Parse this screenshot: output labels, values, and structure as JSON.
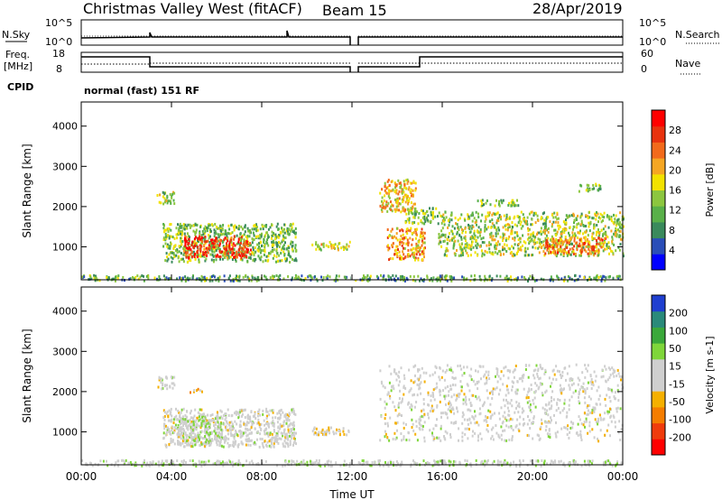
{
  "header": {
    "title": "Christmas Valley West (fitACF)",
    "beam": "Beam 15",
    "date": "28/Apr/2019"
  },
  "param_labels": {
    "nsky": "N.Sky",
    "nsearch": "N.Search",
    "freq_line1": "Freq.",
    "freq_line2": "[MHz]",
    "nave": "Nave",
    "cpid": "CPID",
    "cpid_value": "normal (fast) 151 RF",
    "noise_ticks": [
      "10^5",
      "10^0"
    ],
    "freq_ticks": [
      "18",
      "8"
    ],
    "nave_ticks": [
      "60",
      "0"
    ]
  },
  "chart_data": [
    {
      "type": "heatmap",
      "title": "",
      "xlabel": "Time UT",
      "ylabel": "Slant Range [km]",
      "xlim": [
        0,
        24
      ],
      "ylim": [
        180,
        4600
      ],
      "x_ticks": [
        "00:00",
        "04:00",
        "08:00",
        "12:00",
        "16:00",
        "20:00",
        "00:00"
      ],
      "y_ticks": [
        "1000",
        "2000",
        "3000",
        "4000"
      ],
      "colorbar": {
        "label": "Power [dB]",
        "ticks": [
          "4",
          "8",
          "12",
          "16",
          "20",
          "24",
          "28"
        ],
        "range": [
          0,
          30
        ],
        "colors": [
          "#0000ff",
          "#2a4eb8",
          "#3a8a5c",
          "#59b049",
          "#8cc63f",
          "#f2e200",
          "#f5a623",
          "#f26a1b",
          "#e8330f",
          "#ff0000"
        ]
      },
      "echo_regions": [
        {
          "t": [
            3.3,
            4.1
          ],
          "range": [
            2100,
            2400
          ],
          "value": 14
        },
        {
          "t": [
            3.6,
            9.5
          ],
          "range": [
            650,
            1600
          ],
          "value": 12
        },
        {
          "t": [
            4.5,
            7.5
          ],
          "range": [
            750,
            1300
          ],
          "value": 26
        },
        {
          "t": [
            10.2,
            11.9
          ],
          "range": [
            950,
            1150
          ],
          "value": 16
        },
        {
          "t": [
            13.2,
            14.8
          ],
          "range": [
            1900,
            2700
          ],
          "value": 18
        },
        {
          "t": [
            14.3,
            15.8
          ],
          "range": [
            1600,
            2000
          ],
          "value": 12
        },
        {
          "t": [
            13.5,
            15.2
          ],
          "range": [
            700,
            1500
          ],
          "value": 20
        },
        {
          "t": [
            15.8,
            24
          ],
          "range": [
            800,
            1900
          ],
          "value": 14
        },
        {
          "t": [
            20.5,
            23.2
          ],
          "range": [
            850,
            1250
          ],
          "value": 22
        },
        {
          "t": [
            17.5,
            19.5
          ],
          "range": [
            2050,
            2200
          ],
          "value": 12
        },
        {
          "t": [
            22,
            23
          ],
          "range": [
            2400,
            2600
          ],
          "value": 12
        },
        {
          "t": [
            0,
            24
          ],
          "range": [
            180,
            320
          ],
          "value": 10
        }
      ]
    },
    {
      "type": "heatmap",
      "title": "",
      "xlabel": "Time UT",
      "ylabel": "Slant Range [km]",
      "xlim": [
        0,
        24
      ],
      "ylim": [
        180,
        4600
      ],
      "x_ticks": [
        "00:00",
        "04:00",
        "08:00",
        "12:00",
        "16:00",
        "20:00",
        "00:00"
      ],
      "y_ticks": [
        "1000",
        "2000",
        "3000",
        "4000"
      ],
      "colorbar": {
        "label": "Velocity [m s-1]",
        "ticks": [
          "200",
          "100",
          "50",
          "15",
          "-15",
          "-50",
          "-100",
          "-200"
        ],
        "range": [
          -250,
          250
        ],
        "colors": [
          "#ff0000",
          "#f03c0c",
          "#f57d00",
          "#f5b000",
          "#cfcfcf",
          "#cfcfcf",
          "#7fd63a",
          "#3aa83a",
          "#2a8a7a",
          "#1f3fd0"
        ]
      },
      "echo_regions": [
        {
          "t": [
            3.3,
            4.1
          ],
          "range": [
            2100,
            2400
          ],
          "value": 0
        },
        {
          "t": [
            3.6,
            9.5
          ],
          "range": [
            650,
            1600
          ],
          "value": 0
        },
        {
          "t": [
            4.2,
            6.2
          ],
          "range": [
            700,
            1400
          ],
          "value": 30
        },
        {
          "t": [
            4.8,
            5.4
          ],
          "range": [
            2000,
            2100
          ],
          "value": -60
        },
        {
          "t": [
            10.2,
            11.9
          ],
          "range": [
            950,
            1150
          ],
          "value": -40
        },
        {
          "t": [
            13.2,
            24
          ],
          "range": [
            800,
            2700
          ],
          "value": 0
        },
        {
          "t": [
            0,
            24
          ],
          "range": [
            180,
            320
          ],
          "value": 20
        }
      ]
    }
  ]
}
